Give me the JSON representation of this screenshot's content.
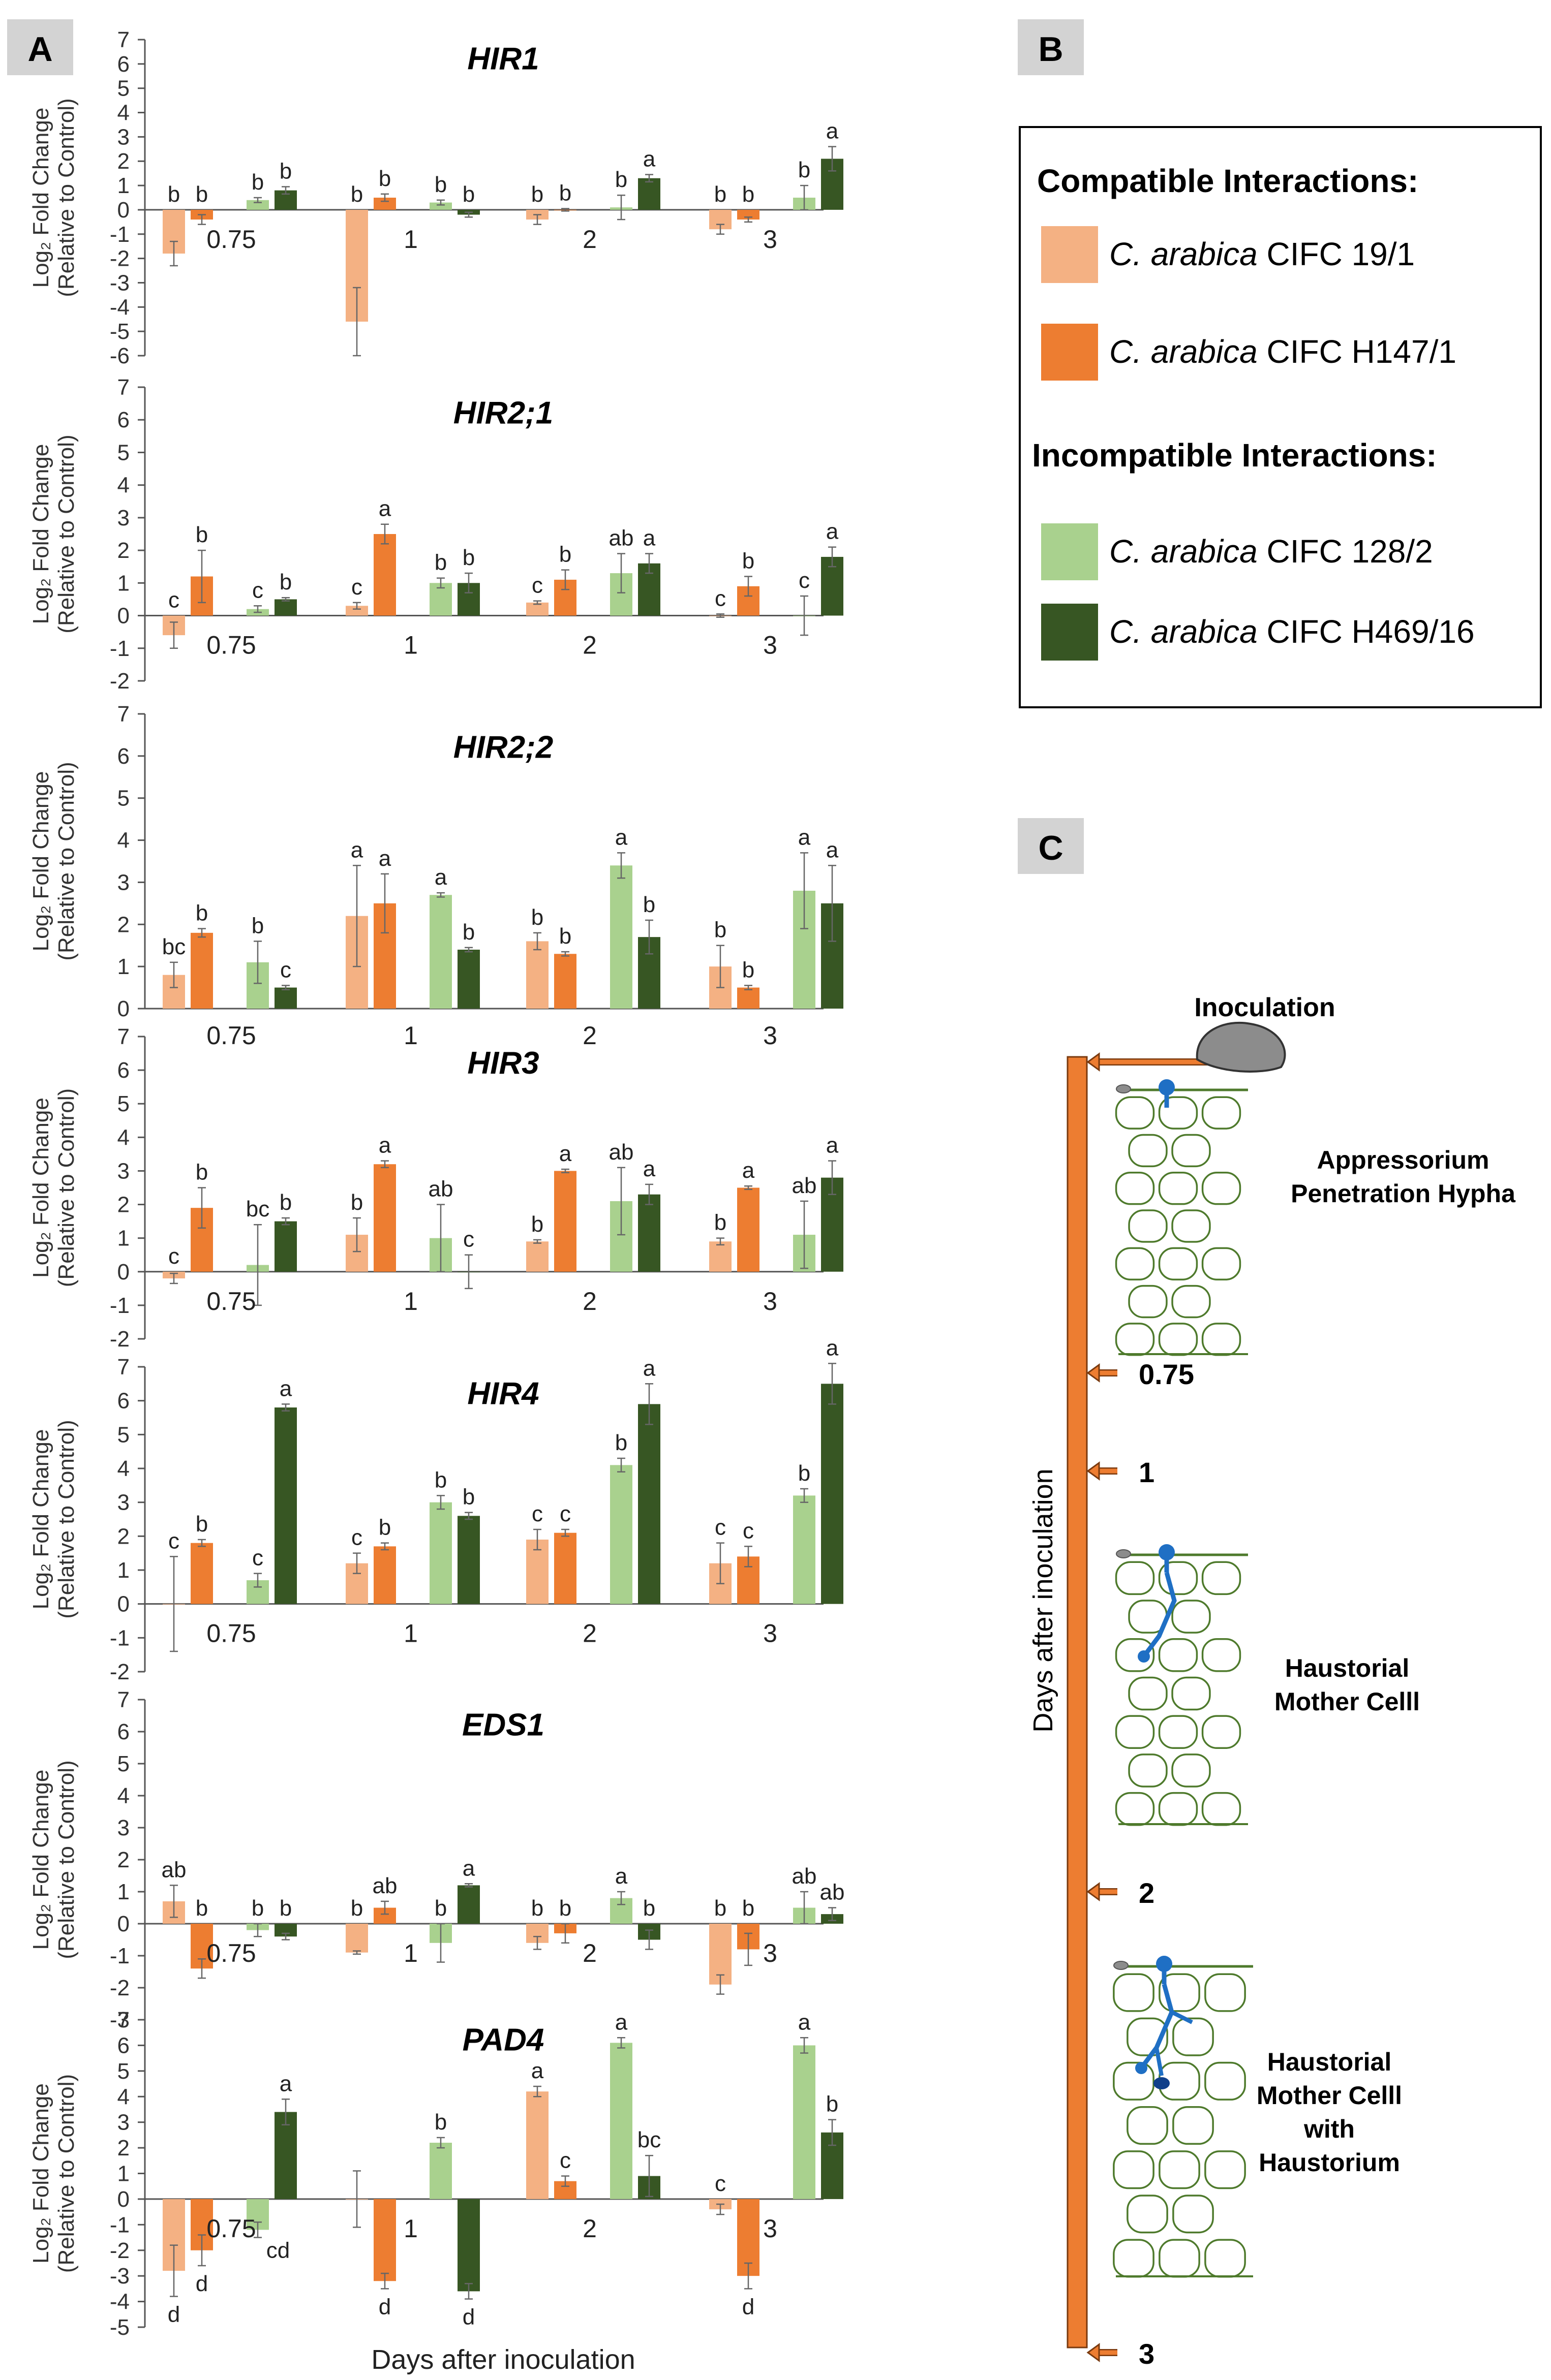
{
  "figure": {
    "panel_labels": [
      "A",
      "B",
      "C"
    ],
    "xlabel": "Days after inoculation",
    "ylabel_line1": "Log₂ Fold Change",
    "ylabel_line2": "(Relative to Control)"
  },
  "legend": {
    "compatible_title": "Compatible Interactions:",
    "incompatible_title": "Incompatible Interactions:",
    "species": "C. arabica",
    "entries": [
      {
        "cultivar": "CIFC 19/1",
        "color": "#F4B183"
      },
      {
        "cultivar": "CIFC H147/1",
        "color": "#ED7D31"
      },
      {
        "cultivar": "CIFC 128/2",
        "color": "#A9D18E"
      },
      {
        "cultivar": "CIFC H469/16",
        "color": "#375623"
      }
    ]
  },
  "diagram": {
    "axis_label": "Days after inoculation",
    "inoculation_label": "Inoculation",
    "stage1": "Appressorium\nPenetration Hypha",
    "stage2": "Haustorial\nMother Celll",
    "stage3": "Haustorial\nMother Celll\nwith\nHaustorium",
    "ticks": [
      "0.75",
      "1",
      "2",
      "3"
    ],
    "colors": {
      "bar": "#ED7D31",
      "cell": "#4E7A2C",
      "fungus": "#1F6FC4",
      "spore": "#8C8C8C"
    }
  },
  "chart_data": [
    {
      "type": "bar",
      "title": "HIR1",
      "ylim": [
        -6,
        7
      ],
      "categories": [
        "0.75",
        "1",
        "2",
        "3"
      ],
      "series_names": [
        "CIFC 19/1",
        "CIFC H147/1",
        "CIFC 128/2",
        "CIFC H469/16"
      ],
      "values": [
        [
          -1.8,
          -4.6,
          -0.4,
          -0.8
        ],
        [
          -0.4,
          0.5,
          0.0,
          -0.4
        ],
        [
          0.4,
          0.3,
          0.1,
          0.5
        ],
        [
          0.8,
          -0.2,
          1.3,
          2.1
        ]
      ],
      "errors": [
        [
          0.5,
          1.4,
          0.2,
          0.2
        ],
        [
          0.2,
          0.15,
          0.05,
          0.1
        ],
        [
          0.1,
          0.1,
          0.5,
          0.5
        ],
        [
          0.15,
          0.1,
          0.15,
          0.5
        ]
      ],
      "letters": [
        [
          "b",
          "b",
          "b",
          "b"
        ],
        [
          "b",
          "b",
          "b",
          "b"
        ],
        [
          "b",
          "b",
          "b",
          "b"
        ],
        [
          "b",
          "b",
          "a",
          "a"
        ]
      ]
    },
    {
      "type": "bar",
      "title": "HIR2;1",
      "ylim": [
        -2,
        7
      ],
      "categories": [
        "0.75",
        "1",
        "2",
        "3"
      ],
      "series_names": [
        "CIFC 19/1",
        "CIFC H147/1",
        "CIFC 128/2",
        "CIFC H469/16"
      ],
      "values": [
        [
          -0.6,
          0.3,
          0.4,
          0.0
        ],
        [
          1.2,
          2.5,
          1.1,
          0.9
        ],
        [
          0.2,
          1.0,
          1.3,
          0.0
        ],
        [
          0.5,
          1.0,
          1.6,
          1.8
        ]
      ],
      "errors": [
        [
          0.4,
          0.1,
          0.05,
          0.05
        ],
        [
          0.8,
          0.3,
          0.3,
          0.3
        ],
        [
          0.1,
          0.15,
          0.6,
          0.6
        ],
        [
          0.05,
          0.3,
          0.3,
          0.3
        ]
      ],
      "letters": [
        [
          "c",
          "c",
          "c",
          "c"
        ],
        [
          "b",
          "a",
          "b",
          "b"
        ],
        [
          "c",
          "b",
          "ab",
          "c"
        ],
        [
          "b",
          "b",
          "a",
          "a"
        ]
      ]
    },
    {
      "type": "bar",
      "title": "HIR2;2",
      "ylim": [
        0,
        7
      ],
      "categories": [
        "0.75",
        "1",
        "2",
        "3"
      ],
      "series_names": [
        "CIFC 19/1",
        "CIFC H147/1",
        "CIFC 128/2",
        "CIFC H469/16"
      ],
      "values": [
        [
          0.8,
          2.2,
          1.6,
          1.0
        ],
        [
          1.8,
          2.5,
          1.3,
          0.5
        ],
        [
          1.1,
          2.7,
          3.4,
          2.8
        ],
        [
          0.5,
          1.4,
          1.7,
          2.5
        ]
      ],
      "errors": [
        [
          0.3,
          1.2,
          0.2,
          0.5
        ],
        [
          0.1,
          0.7,
          0.05,
          0.05
        ],
        [
          0.5,
          0.05,
          0.3,
          0.9
        ],
        [
          0.05,
          0.05,
          0.4,
          0.9
        ]
      ],
      "letters": [
        [
          "bc",
          "a",
          "b",
          "b"
        ],
        [
          "b",
          "a",
          "b",
          "b"
        ],
        [
          "b",
          "a",
          "a",
          "a"
        ],
        [
          "c",
          "b",
          "b",
          "a"
        ]
      ]
    },
    {
      "type": "bar",
      "title": "HIR3",
      "ylim": [
        -2,
        7
      ],
      "categories": [
        "0.75",
        "1",
        "2",
        "3"
      ],
      "series_names": [
        "CIFC 19/1",
        "CIFC H147/1",
        "CIFC 128/2",
        "CIFC H469/16"
      ],
      "values": [
        [
          -0.2,
          1.1,
          0.9,
          0.9
        ],
        [
          1.9,
          3.2,
          3.0,
          2.5
        ],
        [
          0.2,
          1.0,
          2.1,
          1.1
        ],
        [
          1.5,
          0.0,
          2.3,
          2.8
        ]
      ],
      "errors": [
        [
          0.15,
          0.5,
          0.05,
          0.1
        ],
        [
          0.6,
          0.1,
          0.05,
          0.05
        ],
        [
          1.2,
          1.0,
          1.0,
          1.0
        ],
        [
          0.1,
          0.5,
          0.3,
          0.5
        ]
      ],
      "letters": [
        [
          "c",
          "b",
          "b",
          "b"
        ],
        [
          "b",
          "a",
          "a",
          "a"
        ],
        [
          "bc",
          "ab",
          "ab",
          "ab"
        ],
        [
          "b",
          "c",
          "a",
          "a"
        ]
      ]
    },
    {
      "type": "bar",
      "title": "HIR4",
      "ylim": [
        -2,
        7
      ],
      "categories": [
        "0.75",
        "1",
        "2",
        "3"
      ],
      "series_names": [
        "CIFC 19/1",
        "CIFC H147/1",
        "CIFC 128/2",
        "CIFC H469/16"
      ],
      "values": [
        [
          0.0,
          1.2,
          1.9,
          1.2
        ],
        [
          1.8,
          1.7,
          2.1,
          1.4
        ],
        [
          0.7,
          3.0,
          4.1,
          3.2
        ],
        [
          5.8,
          2.6,
          5.9,
          6.5
        ]
      ],
      "errors": [
        [
          1.4,
          0.3,
          0.3,
          0.6
        ],
        [
          0.1,
          0.1,
          0.1,
          0.3
        ],
        [
          0.2,
          0.2,
          0.2,
          0.2
        ],
        [
          0.1,
          0.1,
          0.6,
          0.6
        ]
      ],
      "letters": [
        [
          "c",
          "c",
          "c",
          "c"
        ],
        [
          "b",
          "b",
          "c",
          "c"
        ],
        [
          "c",
          "b",
          "b",
          "b"
        ],
        [
          "a",
          "b",
          "a",
          "a"
        ]
      ]
    },
    {
      "type": "bar",
      "title": "EDS1",
      "ylim": [
        -3,
        7
      ],
      "categories": [
        "0.75",
        "1",
        "2",
        "3"
      ],
      "series_names": [
        "CIFC 19/1",
        "CIFC H147/1",
        "CIFC 128/2",
        "CIFC H469/16"
      ],
      "values": [
        [
          0.7,
          -0.9,
          -0.6,
          -1.9
        ],
        [
          -1.4,
          0.5,
          -0.3,
          -0.8
        ],
        [
          -0.2,
          -0.6,
          0.8,
          0.5
        ],
        [
          -0.4,
          1.2,
          -0.5,
          0.3
        ]
      ],
      "errors": [
        [
          0.5,
          0.05,
          0.2,
          0.3
        ],
        [
          0.3,
          0.2,
          0.3,
          0.5
        ],
        [
          0.2,
          0.6,
          0.2,
          0.5
        ],
        [
          0.1,
          0.05,
          0.3,
          0.2
        ]
      ],
      "letters": [
        [
          "ab",
          "b",
          "b",
          "b"
        ],
        [
          "b",
          "ab",
          "b",
          "b"
        ],
        [
          "b",
          "b",
          "a",
          "ab"
        ],
        [
          "b",
          "a",
          "b",
          "ab"
        ]
      ]
    },
    {
      "type": "bar",
      "title": "PAD4",
      "ylim": [
        -5,
        7
      ],
      "categories": [
        "0.75",
        "1",
        "2",
        "3"
      ],
      "series_names": [
        "CIFC 19/1",
        "CIFC H147/1",
        "CIFC 128/2",
        "CIFC H469/16"
      ],
      "values": [
        [
          -2.8,
          0.0,
          4.2,
          -0.4
        ],
        [
          -2.0,
          -3.2,
          0.7,
          -3.0
        ],
        [
          -1.2,
          2.2,
          6.1,
          6.0
        ],
        [
          3.4,
          -3.6,
          0.9,
          2.6
        ]
      ],
      "errors": [
        [
          1.0,
          1.1,
          0.2,
          0.2
        ],
        [
          0.6,
          0.3,
          0.2,
          0.5
        ],
        [
          0.3,
          0.2,
          0.2,
          0.3
        ],
        [
          0.5,
          0.3,
          0.8,
          0.5
        ]
      ],
      "letters": [
        [
          "d",
          "",
          "a",
          "c"
        ],
        [
          "d",
          "d",
          "c",
          "d"
        ],
        [
          "cd",
          "b",
          "a",
          "a"
        ],
        [
          "a",
          "d",
          "bc",
          "b"
        ]
      ],
      "letter_pos": [
        [
          "below",
          "",
          "above",
          "above"
        ],
        [
          "below",
          "below",
          "above",
          "below"
        ],
        [
          "right",
          "above",
          "above",
          "above"
        ],
        [
          "above",
          "below",
          "above",
          "above"
        ]
      ]
    }
  ]
}
